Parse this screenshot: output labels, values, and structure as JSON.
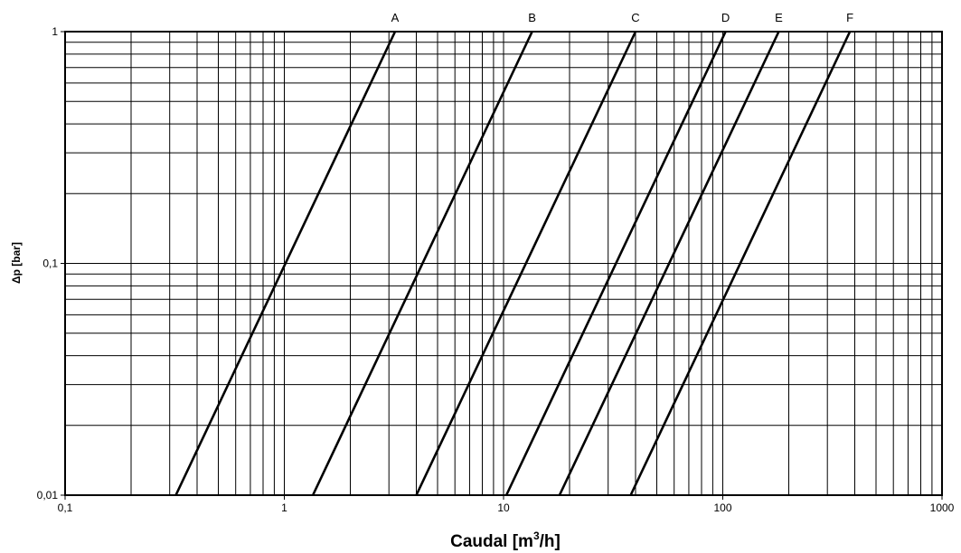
{
  "chart_data": {
    "type": "line",
    "xscale": "log",
    "yscale": "log",
    "xlim": [
      0.1,
      1000
    ],
    "ylim": [
      0.01,
      1
    ],
    "grid": true,
    "xlabel_main": "Caudal [m",
    "xlabel_sup": "3",
    "xlabel_end": "/h]",
    "ylabel": "Δp [bar]",
    "x_ticks": [
      {
        "value": 0.1,
        "label": "0,1"
      },
      {
        "value": 1,
        "label": "1"
      },
      {
        "value": 10,
        "label": "10"
      },
      {
        "value": 100,
        "label": "100"
      },
      {
        "value": 1000,
        "label": "1000"
      }
    ],
    "y_ticks": [
      {
        "value": 0.01,
        "label": "0,01"
      },
      {
        "value": 0.1,
        "label": "0,1"
      },
      {
        "value": 1,
        "label": "1"
      }
    ],
    "series": [
      {
        "name": "A",
        "x": [
          0.32,
          3.2
        ],
        "y": [
          0.01,
          1
        ]
      },
      {
        "name": "B",
        "x": [
          1.35,
          13.5
        ],
        "y": [
          0.01,
          1
        ]
      },
      {
        "name": "C",
        "x": [
          4.0,
          40
        ],
        "y": [
          0.01,
          1
        ]
      },
      {
        "name": "D",
        "x": [
          10.3,
          103
        ],
        "y": [
          0.01,
          1
        ]
      },
      {
        "name": "E",
        "x": [
          18.0,
          180
        ],
        "y": [
          0.01,
          1
        ]
      },
      {
        "name": "F",
        "x": [
          38.0,
          380
        ],
        "y": [
          0.01,
          1
        ]
      }
    ]
  }
}
